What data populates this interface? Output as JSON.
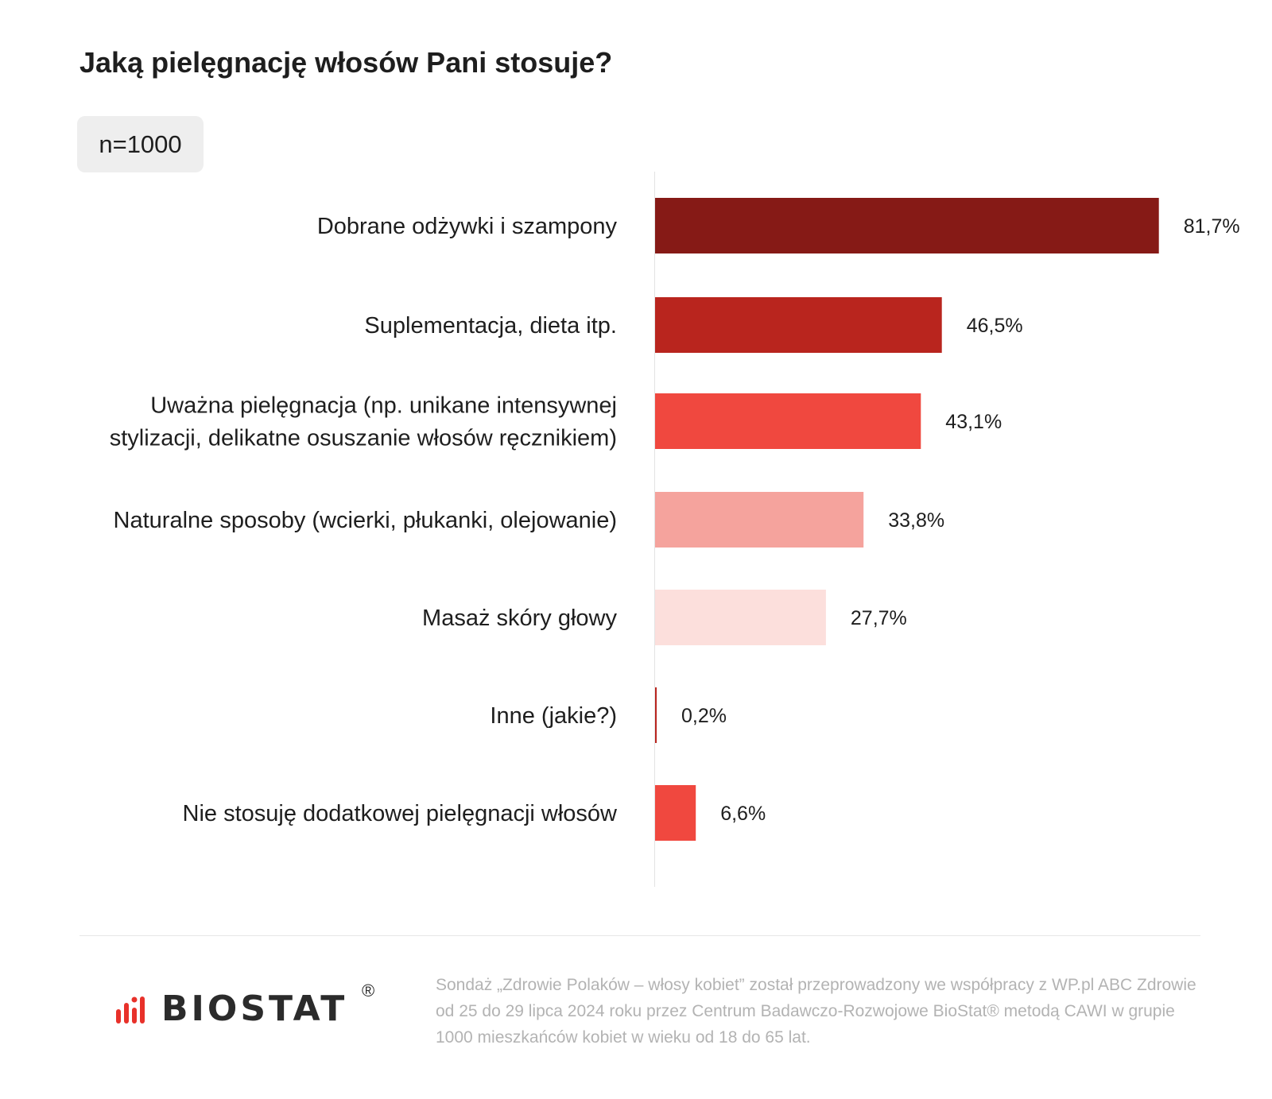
{
  "header": {
    "title": "Jaką pielęgnację włosów Pani stosuje?",
    "sample_size": "n=1000"
  },
  "chart_data": {
    "type": "bar",
    "orientation": "horizontal",
    "title": "Jaką pielęgnację włosów Pani stosuje?",
    "xlabel": "",
    "ylabel": "",
    "xlim": [
      0,
      100
    ],
    "grid": false,
    "legend": "none",
    "categories": [
      [
        "Dobrane odżywki i szampony"
      ],
      [
        "Suplementacja, dieta itp."
      ],
      [
        "Uważna pielęgnacja (np. unikane intensywnej",
        "stylizacji, delikatne osuszanie włosów ręcznikiem)"
      ],
      [
        "Naturalne sposoby (wcierki, płukanki, olejowanie)"
      ],
      [
        "Masaż skóry głowy"
      ],
      [
        "Inne (jakie?)"
      ],
      [
        "Nie stosuję dodatkowej pielęgnacji włosów"
      ]
    ],
    "values": [
      81.7,
      46.5,
      43.1,
      33.8,
      27.7,
      0.2,
      6.6
    ],
    "value_labels": [
      "81,7%",
      "46,5%",
      "43,1%",
      "33,8%",
      "27,7%",
      "0,2%",
      "6,6%"
    ],
    "colors": [
      "#861a16",
      "#b9251e",
      "#f0483f",
      "#f5a39d",
      "#fcdfdc",
      "#b9251e",
      "#f0483f"
    ]
  },
  "footer": {
    "logo_text": "BIOSTAT",
    "logo_registered": "®",
    "logo_colors": [
      "#e8312a",
      "#2b2b2b"
    ],
    "note": "Sondaż „Zdrowie Polaków – włosy kobiet” został przeprowadzony we współpracy z WP.pl ABC Zdrowie od 25 do 29 lipca 2024 roku przez Centrum Badawczo-Rozwojowe BioStat® metodą CAWI w grupie 1000 mieszkańców kobiet w wieku od 18 do 65 lat."
  }
}
